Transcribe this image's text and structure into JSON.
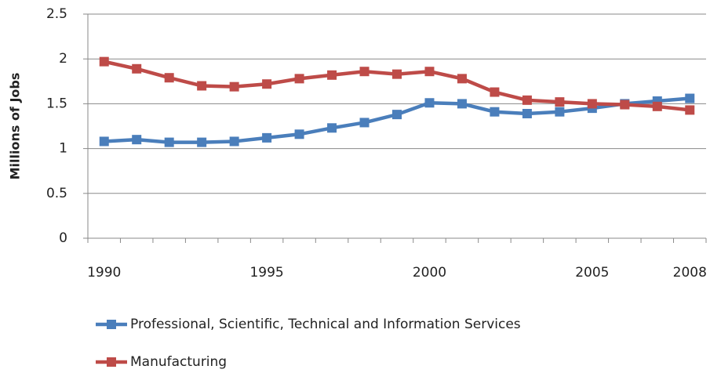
{
  "chart_data": {
    "type": "line",
    "y_label": "Millions of Jobs",
    "categories": [
      "1990",
      null,
      null,
      null,
      null,
      "1995",
      null,
      null,
      null,
      null,
      "2000",
      null,
      null,
      null,
      null,
      "2005",
      null,
      null,
      "2008"
    ],
    "series": [
      {
        "name": "Professional, Scientific, Technical and Information Services",
        "color": "#4a7ebb",
        "values": [
          1.08,
          1.1,
          1.07,
          1.07,
          1.08,
          1.12,
          1.16,
          1.23,
          1.29,
          1.38,
          1.51,
          1.5,
          1.41,
          1.39,
          1.41,
          1.45,
          1.5,
          1.53,
          1.56
        ]
      },
      {
        "name": "Manufacturing",
        "color": "#be4b48",
        "values": [
          1.97,
          1.89,
          1.79,
          1.7,
          1.69,
          1.72,
          1.78,
          1.82,
          1.86,
          1.83,
          1.86,
          1.78,
          1.63,
          1.54,
          1.52,
          1.5,
          1.49,
          1.47,
          1.43
        ]
      }
    ],
    "ylim": [
      0,
      2.5
    ],
    "yticks": [
      0,
      0.5,
      1,
      1.5,
      2,
      2.5
    ],
    "grid": true
  }
}
